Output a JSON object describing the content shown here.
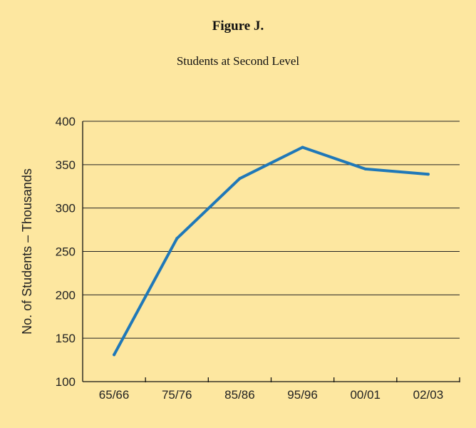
{
  "chart_data": {
    "type": "line",
    "title": "Figure J.",
    "subtitle": "Students at Second Level",
    "xlabel": "",
    "ylabel": "No. of Students – Thousands",
    "categories": [
      "65/66",
      "75/76",
      "85/86",
      "95/96",
      "00/01",
      "02/03"
    ],
    "series": [
      {
        "values": [
          131,
          265,
          334,
          370,
          345,
          339
        ]
      }
    ],
    "yticks": [
      100,
      150,
      200,
      250,
      300,
      350,
      400
    ],
    "ylim": [
      100,
      400
    ],
    "grid": true,
    "legend": "none",
    "colors": {
      "background": "#fde7a0",
      "line": "#1f78b8",
      "grid": "#222222"
    }
  }
}
